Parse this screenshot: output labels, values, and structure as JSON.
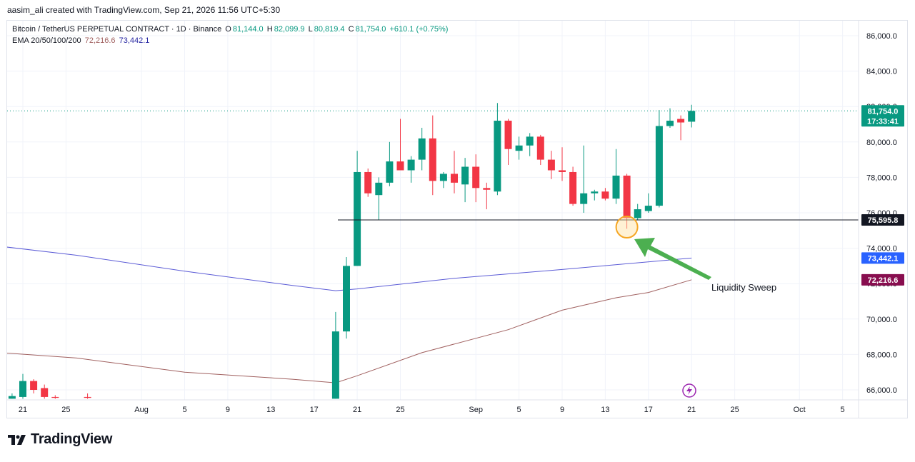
{
  "header": {
    "caption": "aasim_ali created with TradingView.com, Sep 21, 2026 11:56 UTC+5:30"
  },
  "legend": {
    "symbol": "Bitcoin / TetherUS PERPETUAL CONTRACT · 1D · Binance",
    "o_label": "O",
    "o_value": "81,144.0",
    "h_label": "H",
    "h_value": "82,099.9",
    "l_label": "L",
    "l_value": "80,819.4",
    "c_label": "C",
    "c_value": "81,754.0",
    "change": "+610.1 (+0.75%)",
    "ema_label": "EMA 20/50/100/200",
    "ema_value_1": "72,216.6",
    "ema_value_2": "73,442.1"
  },
  "branding": {
    "logo_text": "TradingView"
  },
  "colors": {
    "up": "#089981",
    "down": "#f23645",
    "ema_blue": "#5b5bd6",
    "ema_brown": "#a0605f",
    "price_badge": "#089981",
    "ema_blue_badge": "#2962ff",
    "ema_brown_badge": "#880e4f",
    "level_badge": "#131722",
    "annotation_arrow": "#4caf50",
    "annotation_circle": "#f5a623"
  },
  "chart_data": {
    "type": "candlestick",
    "y_range": [
      65500,
      87000
    ],
    "y_ticks": [
      "66,000.0",
      "68,000.0",
      "70,000.0",
      "72,000.0",
      "74,000.0",
      "76,000.0",
      "78,000.0",
      "80,000.0",
      "82,000.0",
      "84,000.0",
      "86,000.0"
    ],
    "y_tick_values": [
      66000,
      68000,
      70000,
      72000,
      74000,
      76000,
      78000,
      80000,
      82000,
      84000,
      86000
    ],
    "x_ticks": [
      {
        "label": "21",
        "day": 0
      },
      {
        "label": "25",
        "day": 4
      },
      {
        "label": "Aug",
        "day": 11
      },
      {
        "label": "5",
        "day": 15
      },
      {
        "label": "9",
        "day": 19
      },
      {
        "label": "13",
        "day": 23
      },
      {
        "label": "17",
        "day": 27
      },
      {
        "label": "21",
        "day": 31
      },
      {
        "label": "25",
        "day": 35
      },
      {
        "label": "Sep",
        "day": 42
      },
      {
        "label": "5",
        "day": 46
      },
      {
        "label": "9",
        "day": 50
      },
      {
        "label": "13",
        "day": 54
      },
      {
        "label": "17",
        "day": 58
      },
      {
        "label": "21",
        "day": 62
      },
      {
        "label": "25",
        "day": 66
      },
      {
        "label": "Oct",
        "day": 72
      },
      {
        "label": "5",
        "day": 76
      }
    ],
    "candles": [
      {
        "d": -1,
        "o": 65500,
        "h": 65800,
        "l": 65500,
        "c": 65650
      },
      {
        "d": 0,
        "o": 65600,
        "h": 66900,
        "l": 65500,
        "c": 66500
      },
      {
        "d": 1,
        "o": 66500,
        "h": 66600,
        "l": 65800,
        "c": 66000
      },
      {
        "d": 2,
        "o": 66100,
        "h": 66300,
        "l": 65500,
        "c": 65600
      },
      {
        "d": 3,
        "o": 65600,
        "h": 65700,
        "l": 65500,
        "c": 65550
      },
      {
        "d": 6,
        "o": 65600,
        "h": 65800,
        "l": 65500,
        "c": 65550
      },
      {
        "d": 29,
        "o": 65500,
        "h": 70400,
        "l": 65500,
        "c": 69300
      },
      {
        "d": 30,
        "o": 69300,
        "h": 73500,
        "l": 68900,
        "c": 73000
      },
      {
        "d": 31,
        "o": 73000,
        "h": 79500,
        "l": 73000,
        "c": 78300
      },
      {
        "d": 32,
        "o": 78300,
        "h": 78500,
        "l": 76900,
        "c": 77100
      },
      {
        "d": 33,
        "o": 77000,
        "h": 78000,
        "l": 75600,
        "c": 77700
      },
      {
        "d": 34,
        "o": 77700,
        "h": 80000,
        "l": 77500,
        "c": 78900
      },
      {
        "d": 35,
        "o": 78900,
        "h": 81300,
        "l": 78400,
        "c": 78400
      },
      {
        "d": 36,
        "o": 78400,
        "h": 79200,
        "l": 77700,
        "c": 79000
      },
      {
        "d": 37,
        "o": 79000,
        "h": 80800,
        "l": 78400,
        "c": 80200
      },
      {
        "d": 38,
        "o": 80200,
        "h": 81500,
        "l": 77000,
        "c": 77800
      },
      {
        "d": 39,
        "o": 77800,
        "h": 78300,
        "l": 77400,
        "c": 78200
      },
      {
        "d": 40,
        "o": 78200,
        "h": 79500,
        "l": 77100,
        "c": 77700
      },
      {
        "d": 41,
        "o": 77600,
        "h": 79100,
        "l": 76600,
        "c": 78600
      },
      {
        "d": 42,
        "o": 78600,
        "h": 79300,
        "l": 76600,
        "c": 77400
      },
      {
        "d": 43,
        "o": 77400,
        "h": 77700,
        "l": 76200,
        "c": 77300
      },
      {
        "d": 44,
        "o": 77200,
        "h": 82200,
        "l": 77000,
        "c": 81200
      },
      {
        "d": 45,
        "o": 81200,
        "h": 81300,
        "l": 78700,
        "c": 79600
      },
      {
        "d": 46,
        "o": 79500,
        "h": 80300,
        "l": 79000,
        "c": 79800
      },
      {
        "d": 47,
        "o": 79800,
        "h": 80500,
        "l": 79200,
        "c": 80300
      },
      {
        "d": 48,
        "o": 80300,
        "h": 80400,
        "l": 78700,
        "c": 79000
      },
      {
        "d": 49,
        "o": 79000,
        "h": 79500,
        "l": 77900,
        "c": 78400
      },
      {
        "d": 50,
        "o": 78400,
        "h": 79700,
        "l": 77800,
        "c": 78300
      },
      {
        "d": 51,
        "o": 78300,
        "h": 78600,
        "l": 76400,
        "c": 76500
      },
      {
        "d": 52,
        "o": 76500,
        "h": 79800,
        "l": 76000,
        "c": 77100
      },
      {
        "d": 53,
        "o": 77100,
        "h": 77300,
        "l": 76700,
        "c": 77200
      },
      {
        "d": 54,
        "o": 77200,
        "h": 77400,
        "l": 76700,
        "c": 76800
      },
      {
        "d": 55,
        "o": 76800,
        "h": 79600,
        "l": 76500,
        "c": 78100
      },
      {
        "d": 56,
        "o": 78100,
        "h": 78200,
        "l": 75100,
        "c": 75700
      },
      {
        "d": 57,
        "o": 75700,
        "h": 76500,
        "l": 75600,
        "c": 76200
      },
      {
        "d": 58,
        "o": 76100,
        "h": 77100,
        "l": 76000,
        "c": 76400
      },
      {
        "d": 59,
        "o": 76400,
        "h": 81800,
        "l": 76300,
        "c": 80900
      },
      {
        "d": 60,
        "o": 80900,
        "h": 81900,
        "l": 80800,
        "c": 81200
      },
      {
        "d": 61,
        "o": 81300,
        "h": 81500,
        "l": 80100,
        "c": 81100
      },
      {
        "d": 62,
        "o": 81144,
        "h": 82099.9,
        "l": 80819.4,
        "c": 81754
      }
    ],
    "ema_series": [
      {
        "value_label": "73,442.1",
        "points": [
          [
            -2,
            74100
          ],
          [
            5,
            73600
          ],
          [
            15,
            72700
          ],
          [
            25,
            71900
          ],
          [
            29,
            71600
          ],
          [
            31,
            71700
          ],
          [
            40,
            72300
          ],
          [
            50,
            72800
          ],
          [
            62,
            73442.1
          ]
        ]
      },
      {
        "value_label": "72,216.6",
        "points": [
          [
            -2,
            68100
          ],
          [
            5,
            67800
          ],
          [
            15,
            67000
          ],
          [
            25,
            66600
          ],
          [
            29,
            66400
          ],
          [
            31,
            66800
          ],
          [
            37,
            68100
          ],
          [
            45,
            69400
          ],
          [
            50,
            70500
          ],
          [
            55,
            71200
          ],
          [
            58,
            71500
          ],
          [
            62,
            72216.6
          ]
        ]
      }
    ],
    "price_line": {
      "value": 81754,
      "label": "81,754.0",
      "countdown": "17:33:41"
    },
    "level_line": {
      "value": 75595.8,
      "label": "75,595.8",
      "from_day": 30
    },
    "annotation": {
      "text": "Liquidity Sweep",
      "target_day": 56,
      "target_value": 75595.8
    }
  }
}
